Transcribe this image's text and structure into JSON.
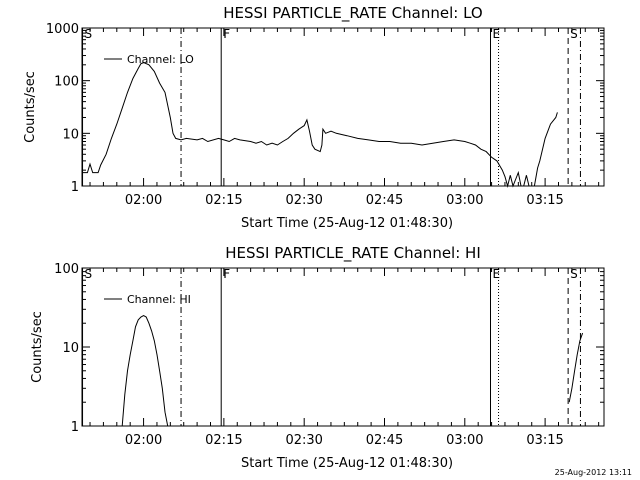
{
  "footer_timestamp": "25-Aug-2012 13:11",
  "chart_data": [
    {
      "type": "line",
      "title": "HESSI PARTICLE_RATE Channel: LO",
      "xlabel": "Start Time (25-Aug-12 01:48:30)",
      "ylabel": "Counts/sec",
      "x_tick_labels": [
        "02:00",
        "02:15",
        "02:30",
        "02:45",
        "03:00",
        "03:15"
      ],
      "x_tick_minutes": [
        120,
        135,
        150,
        165,
        180,
        195
      ],
      "xlim_minutes": [
        108.5,
        206
      ],
      "y_scale": "log",
      "ylim": [
        1,
        1000
      ],
      "y_tick_labels": [
        "1",
        "10",
        "100",
        "1000"
      ],
      "legend": "top-left",
      "series": [
        {
          "name": "Channel: LO",
          "points": [
            [
              108.5,
              1.8
            ],
            [
              109.5,
              1.8
            ],
            [
              110.0,
              2.6
            ],
            [
              110.5,
              1.8
            ],
            [
              111.5,
              1.8
            ],
            [
              112.0,
              2.5
            ],
            [
              113,
              4
            ],
            [
              114,
              8
            ],
            [
              115,
              15
            ],
            [
              116,
              30
            ],
            [
              117,
              60
            ],
            [
              118,
              110
            ],
            [
              119,
              170
            ],
            [
              119.5,
              210
            ],
            [
              120,
              220
            ],
            [
              121,
              200
            ],
            [
              122,
              150
            ],
            [
              123,
              90
            ],
            [
              124,
              60
            ],
            [
              125,
              20
            ],
            [
              125.5,
              10
            ],
            [
              126,
              8
            ],
            [
              127,
              7.5
            ],
            [
              128,
              8
            ],
            [
              130,
              7.5
            ],
            [
              131,
              8
            ],
            [
              132,
              7
            ],
            [
              134,
              8
            ],
            [
              135,
              7.5
            ],
            [
              136,
              7
            ],
            [
              137,
              8
            ],
            [
              138,
              7.5
            ],
            [
              140,
              7
            ],
            [
              141,
              6.5
            ],
            [
              142,
              7
            ],
            [
              143,
              6
            ],
            [
              144,
              6.5
            ],
            [
              145,
              6
            ],
            [
              146,
              7
            ],
            [
              147,
              8
            ],
            [
              148,
              10
            ],
            [
              149,
              12
            ],
            [
              150,
              14
            ],
            [
              150.5,
              18
            ],
            [
              151,
              11
            ],
            [
              151.5,
              6
            ],
            [
              152,
              5
            ],
            [
              153,
              4.5
            ],
            [
              153.3,
              6
            ],
            [
              153.5,
              12
            ],
            [
              154,
              10
            ],
            [
              155,
              11
            ],
            [
              156,
              10
            ],
            [
              158,
              9
            ],
            [
              160,
              8
            ],
            [
              162,
              7.5
            ],
            [
              164,
              7
            ],
            [
              166,
              7
            ],
            [
              168,
              6.5
            ],
            [
              170,
              6.5
            ],
            [
              172,
              6
            ],
            [
              174,
              6.5
            ],
            [
              176,
              7
            ],
            [
              178,
              7.5
            ],
            [
              180,
              7
            ],
            [
              181,
              6.5
            ],
            [
              182,
              6
            ],
            [
              183,
              5
            ],
            [
              184,
              4.5
            ],
            [
              185,
              3.5
            ],
            [
              186,
              3
            ],
            [
              187,
              2
            ],
            [
              187.5,
              1.5
            ],
            [
              188,
              1
            ],
            [
              188.5,
              1.6
            ],
            [
              189,
              1
            ],
            [
              190,
              1.8
            ],
            [
              190.5,
              1
            ],
            [
              191,
              1
            ],
            [
              191.5,
              1.6
            ],
            [
              192,
              1
            ],
            [
              193,
              1
            ],
            [
              193.6,
              2.2
            ],
            [
              194,
              3
            ],
            [
              195,
              8
            ],
            [
              196,
              15
            ],
            [
              197,
              20
            ],
            [
              197.3,
              25
            ]
          ]
        }
      ],
      "markers": [
        {
          "label": "S",
          "minute": 108.6,
          "style": "solid"
        },
        {
          "label": "",
          "minute": 127.0,
          "style": "dash-dot"
        },
        {
          "label": "F",
          "minute": 134.5,
          "style": "solid"
        },
        {
          "label": "E",
          "minute": 184.8,
          "style": "solid"
        },
        {
          "label": "",
          "minute": 186.3,
          "style": "dotted"
        },
        {
          "label": "S",
          "minute": 199.3,
          "style": "dashed"
        },
        {
          "label": "",
          "minute": 201.6,
          "style": "dash-dot"
        }
      ]
    },
    {
      "type": "line",
      "title": "HESSI PARTICLE_RATE Channel: HI",
      "xlabel": "Start Time (25-Aug-12 01:48:30)",
      "ylabel": "Counts/sec",
      "x_tick_labels": [
        "02:00",
        "02:15",
        "02:30",
        "02:45",
        "03:00",
        "03:15"
      ],
      "x_tick_minutes": [
        120,
        135,
        150,
        165,
        180,
        195
      ],
      "xlim_minutes": [
        108.5,
        206
      ],
      "y_scale": "log",
      "ylim": [
        1,
        100
      ],
      "y_tick_labels": [
        "1",
        "10",
        "100"
      ],
      "legend": "top-left",
      "series": [
        {
          "name": "Channel: HI",
          "points": [
            [
              116.0,
              1.0
            ],
            [
              116.5,
              2.5
            ],
            [
              117,
              5
            ],
            [
              117.5,
              8
            ],
            [
              118,
              12
            ],
            [
              118.5,
              18
            ],
            [
              119,
              22
            ],
            [
              119.5,
              24
            ],
            [
              120,
              25
            ],
            [
              120.5,
              24
            ],
            [
              121,
              20
            ],
            [
              121.5,
              16
            ],
            [
              122,
              12
            ],
            [
              122.5,
              8
            ],
            [
              123,
              5
            ],
            [
              123.5,
              3
            ],
            [
              124,
              1.5
            ],
            [
              124.5,
              1.0
            ],
            [
              199.5,
              2.0
            ],
            [
              200,
              3
            ],
            [
              200.5,
              5
            ],
            [
              201,
              8
            ],
            [
              201.5,
              12
            ],
            [
              202,
              15
            ]
          ]
        }
      ],
      "markers": [
        {
          "label": "S",
          "minute": 108.6,
          "style": "solid"
        },
        {
          "label": "",
          "minute": 127.0,
          "style": "dash-dot"
        },
        {
          "label": "F",
          "minute": 134.5,
          "style": "solid"
        },
        {
          "label": "E",
          "minute": 184.8,
          "style": "solid"
        },
        {
          "label": "",
          "minute": 186.3,
          "style": "dotted"
        },
        {
          "label": "S",
          "minute": 199.3,
          "style": "dashed"
        },
        {
          "label": "",
          "minute": 201.6,
          "style": "dash-dot"
        }
      ]
    }
  ]
}
